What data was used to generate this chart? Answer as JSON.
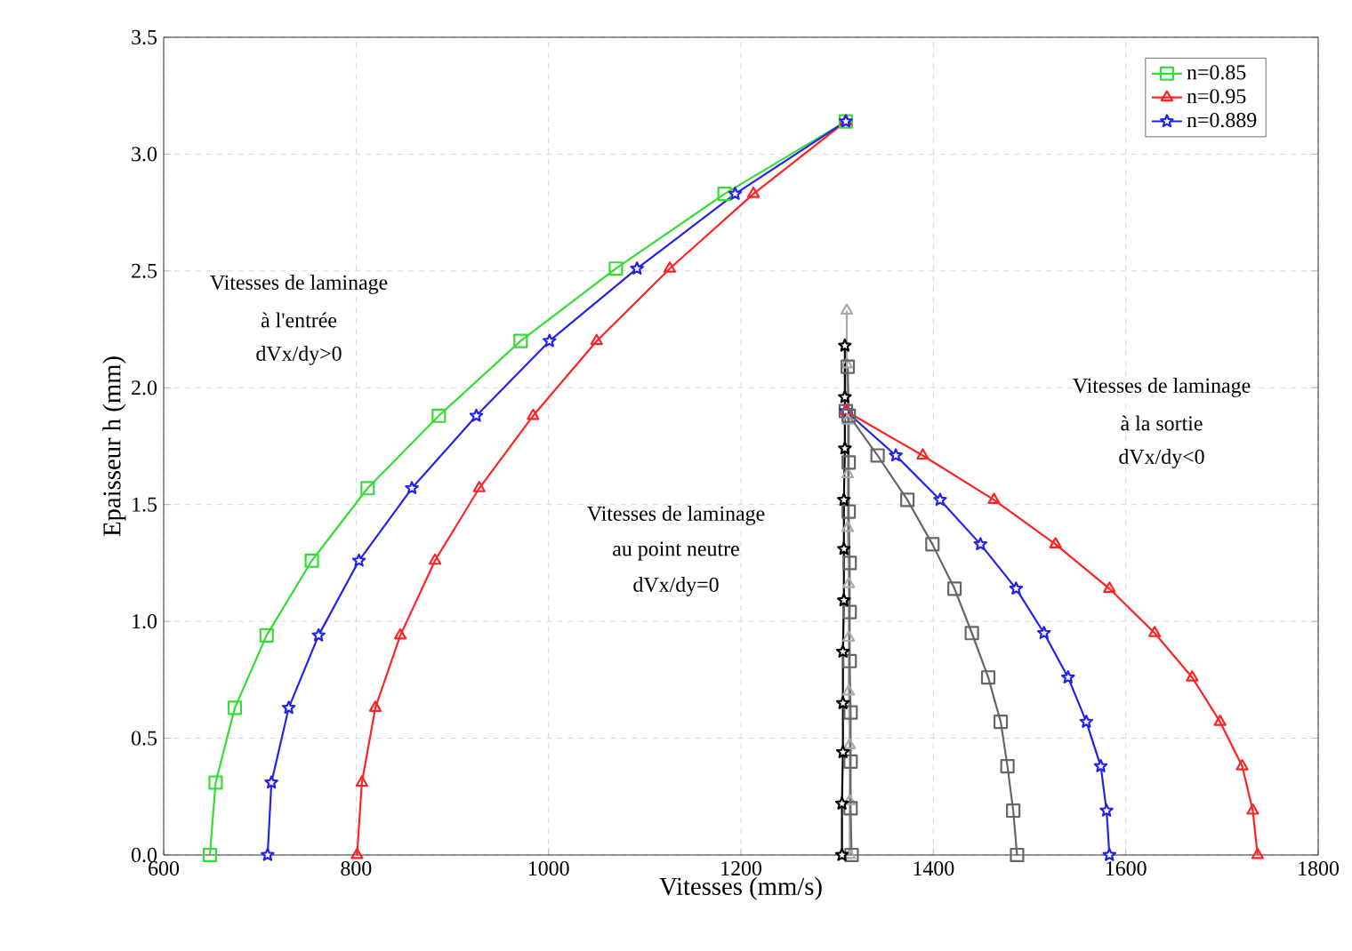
{
  "chart_data": {
    "type": "line",
    "xlabel": "Vitesses (mm/s)",
    "ylabel": "Epaisseur h (mm)",
    "xlim": [
      600,
      1800
    ],
    "ylim": [
      0,
      3.5
    ],
    "xticks": [
      600,
      800,
      1000,
      1200,
      1400,
      1600,
      1800
    ],
    "yticks": [
      {
        "value": 0,
        "label": "0.0"
      },
      {
        "value": 0.5,
        "label": "0.5"
      },
      {
        "value": 1,
        "label": "1.0"
      },
      {
        "value": 1.5,
        "label": "1.5"
      },
      {
        "value": 2,
        "label": "2.0"
      },
      {
        "value": 2.5,
        "label": "2.5"
      },
      {
        "value": 3,
        "label": "3.0"
      },
      {
        "value": 3.5,
        "label": "3.5"
      }
    ],
    "grid": true,
    "legend": "top right",
    "line_style": "solid",
    "series": [
      {
        "name": "n=0.85",
        "color": "#33dd33",
        "marker": "square",
        "x": [
          648,
          654,
          674,
          707,
          754,
          812,
          886,
          971,
          1070,
          1183,
          1309
        ],
        "values": [
          0,
          0.31,
          0.63,
          0.94,
          1.26,
          1.57,
          1.88,
          2.2,
          2.51,
          2.83,
          3.14
        ]
      },
      {
        "name": "n=0.95",
        "color": "#ff2222",
        "marker": "triangle",
        "x": [
          801,
          806,
          820,
          846,
          882,
          928,
          984,
          1050,
          1126,
          1213,
          1309
        ],
        "values": [
          0,
          0.31,
          0.63,
          0.94,
          1.26,
          1.57,
          1.88,
          2.2,
          2.51,
          2.83,
          3.14
        ]
      },
      {
        "name": "n=0.889",
        "color": "#2222ee",
        "marker": "star",
        "x": [
          708,
          712,
          730,
          761,
          803,
          858,
          925,
          1001,
          1092,
          1194,
          1309
        ],
        "values": [
          0,
          0.31,
          0.63,
          0.94,
          1.26,
          1.57,
          1.88,
          2.2,
          2.51,
          2.83,
          3.14
        ]
      },
      {
        "color": "#666666",
        "marker": "square",
        "x": [
          1309,
          1342,
          1373,
          1399,
          1422,
          1440,
          1457,
          1470,
          1477,
          1483,
          1487
        ],
        "values": [
          1.9,
          1.71,
          1.52,
          1.33,
          1.14,
          0.95,
          0.76,
          0.57,
          0.38,
          0.19,
          0
        ]
      },
      {
        "color": "#2222ee",
        "marker": "star",
        "x": [
          1309,
          1361,
          1407,
          1449,
          1486,
          1515,
          1540,
          1559,
          1574,
          1580,
          1583
        ],
        "values": [
          1.9,
          1.71,
          1.52,
          1.33,
          1.14,
          0.95,
          0.76,
          0.57,
          0.38,
          0.19,
          0
        ]
      },
      {
        "color": "#ff2222",
        "marker": "triangle",
        "x": [
          1309,
          1389,
          1463,
          1527,
          1583,
          1630,
          1669,
          1698,
          1721,
          1732,
          1737
        ],
        "values": [
          1.9,
          1.71,
          1.52,
          1.33,
          1.14,
          0.95,
          0.76,
          0.57,
          0.38,
          0.19,
          0
        ]
      },
      {
        "color": "#aaaaaa",
        "marker": "triangle",
        "x": [
          1310,
          1310,
          1311,
          1311,
          1311,
          1312,
          1312,
          1312,
          1313,
          1313,
          1313
        ],
        "values": [
          2.33,
          2.1,
          1.86,
          1.63,
          1.4,
          1.16,
          0.93,
          0.7,
          0.47,
          0.23,
          0
        ]
      },
      {
        "color": "#666666",
        "marker": "square",
        "x": [
          1311,
          1312,
          1312,
          1312,
          1313,
          1313,
          1313,
          1314,
          1314,
          1314,
          1315
        ],
        "values": [
          2.09,
          1.88,
          1.68,
          1.47,
          1.25,
          1.04,
          0.83,
          0.61,
          0.4,
          0.2,
          0
        ]
      },
      {
        "color": "#000000",
        "marker": "star",
        "x": [
          1308,
          1308,
          1308,
          1307,
          1307,
          1307,
          1306,
          1306,
          1306,
          1305,
          1305
        ],
        "values": [
          2.18,
          1.96,
          1.74,
          1.52,
          1.31,
          1.09,
          0.87,
          0.65,
          0.44,
          0.22,
          0
        ]
      }
    ],
    "annotations": [
      "Vitesses de laminage",
      "à l'entrée",
      "dVx/dy>0",
      "Vitesses de laminage",
      "au point neutre",
      "dVx/dy=0",
      "Vitesses de laminage",
      "à la sortie",
      "dVx/dy<0"
    ]
  }
}
